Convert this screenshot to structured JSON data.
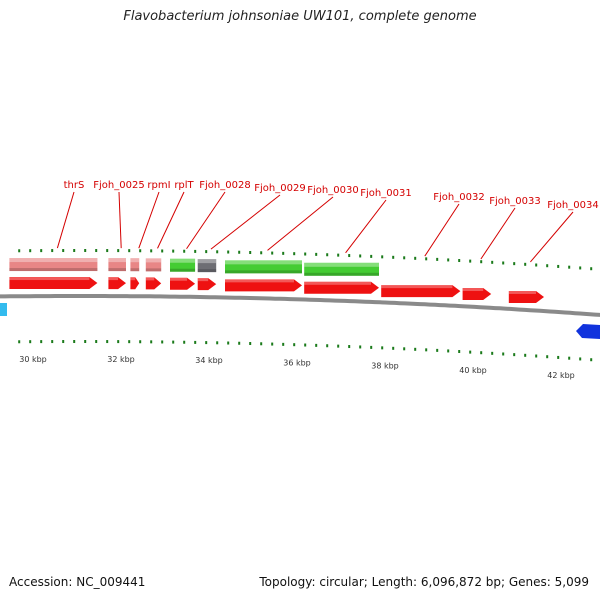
{
  "title": "Flavobacterium johnsoniae UW101, complete genome",
  "footer": {
    "accession": "Accession: NC_009441",
    "summary": "Topology: circular; Length: 6,096,872 bp; Genes: 5,099"
  },
  "colors": {
    "gene_red": "#ee1111",
    "gene_pink": "#e88686",
    "gene_green": "#44cc33",
    "gene_gray": "#6e6e74",
    "backbone": "#8a8a8a",
    "tick_green": "#1a7a1a",
    "blue_feature": "#1133dd",
    "cyan_feature": "#33bbee",
    "label_red": "#d40000"
  },
  "genes": [
    {
      "label": "thrS",
      "start": 29.6,
      "end": 31.6
    },
    {
      "label": "Fjoh_0025",
      "start": 31.85,
      "end": 32.25
    },
    {
      "label": "rpmI",
      "start": 32.35,
      "end": 32.55
    },
    {
      "label": "rplT",
      "start": 32.7,
      "end": 33.05
    },
    {
      "label": "Fjoh_0028",
      "start": 33.25,
      "end": 33.82
    },
    {
      "label": "Fjoh_0029",
      "start": 33.88,
      "end": 34.3
    },
    {
      "label": "Fjoh_0030",
      "start": 34.5,
      "end": 36.25
    },
    {
      "label": "Fjoh_0031",
      "start": 36.3,
      "end": 38.0
    },
    {
      "label": "Fjoh_0032",
      "start": 38.05,
      "end": 39.85
    },
    {
      "label": "Fjoh_0033",
      "start": 39.9,
      "end": 40.55
    },
    {
      "label": "Fjoh_0034",
      "start": 40.95,
      "end": 41.75
    }
  ],
  "track_features": [
    {
      "start": 29.6,
      "end": 31.6,
      "color": "pink"
    },
    {
      "start": 31.85,
      "end": 32.25,
      "color": "pink"
    },
    {
      "start": 32.35,
      "end": 32.55,
      "color": "pink"
    },
    {
      "start": 32.7,
      "end": 33.05,
      "color": "pink"
    },
    {
      "start": 33.25,
      "end": 33.82,
      "color": "green"
    },
    {
      "start": 33.88,
      "end": 34.3,
      "color": "gray"
    },
    {
      "start": 34.5,
      "end": 36.25,
      "color": "green"
    },
    {
      "start": 36.3,
      "end": 38.0,
      "color": "green"
    }
  ],
  "ruler": {
    "labels": [
      "30 kbp",
      "32 kbp",
      "34 kbp",
      "36 kbp",
      "38 kbp",
      "40 kbp",
      "42 kbp"
    ],
    "label_positions": [
      30,
      32,
      34,
      36,
      38,
      40,
      42
    ]
  }
}
